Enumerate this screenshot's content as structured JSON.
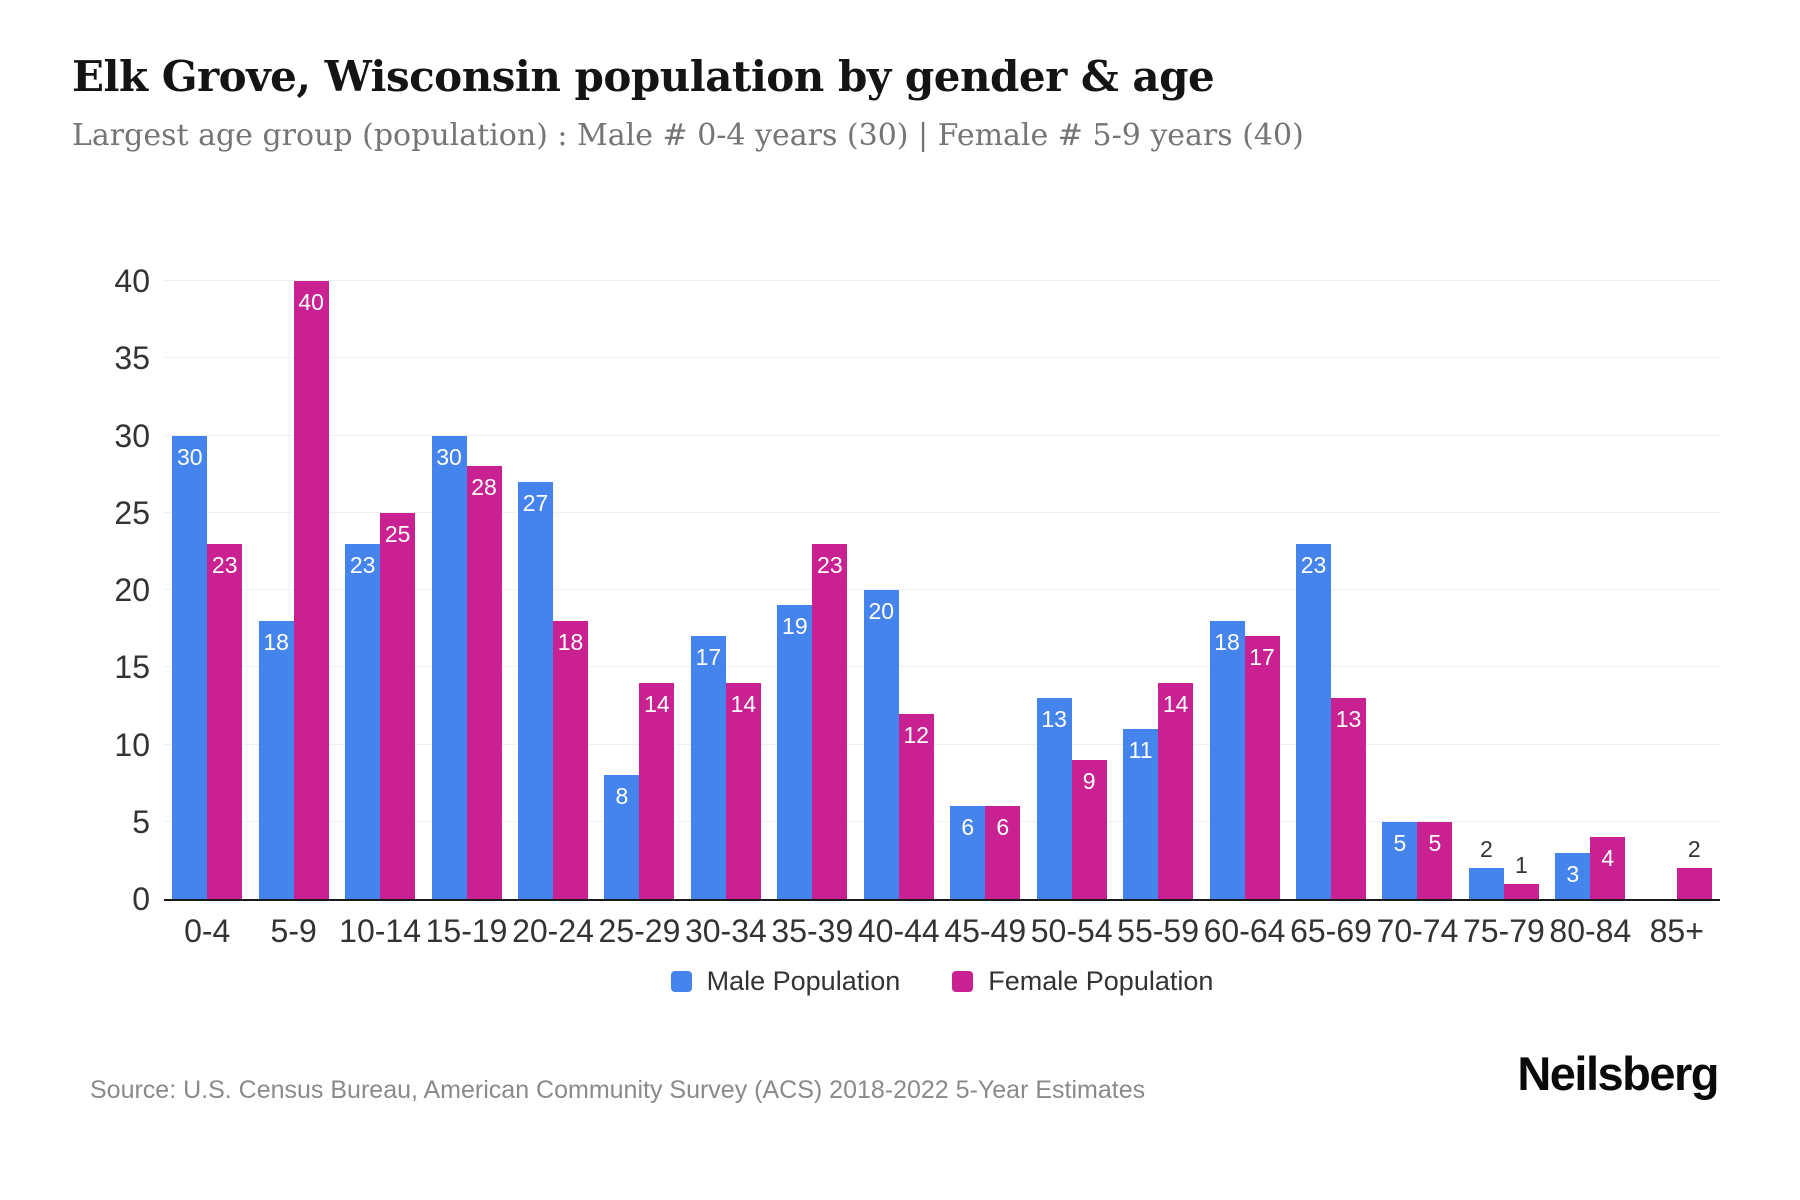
{
  "header": {
    "title": "Elk Grove, Wisconsin population by gender & age",
    "subtitle": "Largest age group (population) : Male # 0-4 years (30) | Female # 5-9 years (40)"
  },
  "chart_data": {
    "type": "bar",
    "grouped": true,
    "title": "Elk Grove, Wisconsin population by gender & age",
    "categories": [
      "0-4",
      "5-9",
      "10-14",
      "15-19",
      "20-24",
      "25-29",
      "30-34",
      "35-39",
      "40-44",
      "45-49",
      "50-54",
      "55-59",
      "60-64",
      "65-69",
      "70-74",
      "75-79",
      "80-84",
      "85+"
    ],
    "series": [
      {
        "name": "Male Population",
        "color": "#4584ec",
        "values": [
          30,
          18,
          23,
          30,
          27,
          8,
          17,
          19,
          20,
          6,
          13,
          11,
          18,
          23,
          5,
          2,
          3,
          0
        ]
      },
      {
        "name": "Female Population",
        "color": "#c92191",
        "values": [
          23,
          40,
          25,
          28,
          18,
          14,
          14,
          23,
          12,
          6,
          9,
          14,
          17,
          13,
          5,
          1,
          4,
          2
        ]
      }
    ],
    "xlabel": "",
    "ylabel": "",
    "ylim": [
      0,
      40
    ],
    "yticks": [
      0,
      5,
      10,
      15,
      20,
      25,
      30,
      35,
      40
    ],
    "grid": "horizontal",
    "gridline_color": "#f0f0f0",
    "axis_line_color": "#1a1a1a",
    "legend_position": "bottom",
    "bar_label_color_inside": "#ffffff",
    "bar_label_color_outside": "#333333"
  },
  "footer": {
    "source": "Source: U.S. Census Bureau, American Community Survey (ACS) 2018-2022 5-Year Estimates",
    "brand": "Neilsberg"
  }
}
